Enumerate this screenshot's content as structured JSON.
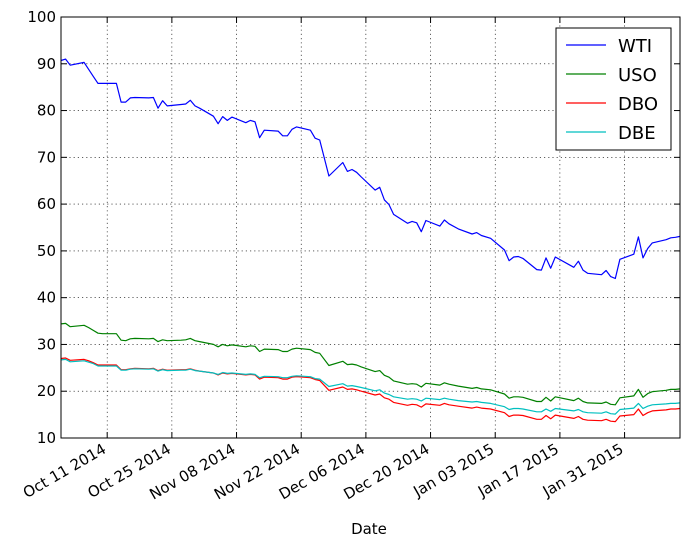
{
  "chart_data": {
    "type": "line",
    "xlabel": "Date",
    "ylabel": "",
    "ylim": [
      10,
      100
    ],
    "xlim": [
      "2014-10-01",
      "2015-02-12"
    ],
    "yticks": [
      10,
      20,
      30,
      40,
      50,
      60,
      70,
      80,
      90,
      100
    ],
    "xticks": [
      {
        "date": "2014-10-11",
        "label": "Oct 11 2014"
      },
      {
        "date": "2014-10-25",
        "label": "Oct 25 2014"
      },
      {
        "date": "2014-11-08",
        "label": "Nov 08 2014"
      },
      {
        "date": "2014-11-22",
        "label": "Nov 22 2014"
      },
      {
        "date": "2014-12-06",
        "label": "Dec 06 2014"
      },
      {
        "date": "2014-12-20",
        "label": "Dec 20 2014"
      },
      {
        "date": "2015-01-03",
        "label": "Jan 03 2015"
      },
      {
        "date": "2015-01-17",
        "label": "Jan 17 2015"
      },
      {
        "date": "2015-01-31",
        "label": "Jan 31 2015"
      }
    ],
    "grid": true,
    "legend_position": "top-right",
    "x": [
      "2014-10-01",
      "2014-10-02",
      "2014-10-03",
      "2014-10-06",
      "2014-10-07",
      "2014-10-08",
      "2014-10-09",
      "2014-10-10",
      "2014-10-13",
      "2014-10-14",
      "2014-10-15",
      "2014-10-16",
      "2014-10-17",
      "2014-10-20",
      "2014-10-21",
      "2014-10-22",
      "2014-10-23",
      "2014-10-24",
      "2014-10-27",
      "2014-10-28",
      "2014-10-29",
      "2014-10-30",
      "2014-10-31",
      "2014-11-03",
      "2014-11-04",
      "2014-11-05",
      "2014-11-06",
      "2014-11-07",
      "2014-11-10",
      "2014-11-11",
      "2014-11-12",
      "2014-11-13",
      "2014-11-14",
      "2014-11-17",
      "2014-11-18",
      "2014-11-19",
      "2014-11-20",
      "2014-11-21",
      "2014-11-24",
      "2014-11-25",
      "2014-11-26",
      "2014-11-28",
      "2014-12-01",
      "2014-12-02",
      "2014-12-03",
      "2014-12-04",
      "2014-12-05",
      "2014-12-08",
      "2014-12-09",
      "2014-12-10",
      "2014-12-11",
      "2014-12-12",
      "2014-12-15",
      "2014-12-16",
      "2014-12-17",
      "2014-12-18",
      "2014-12-19",
      "2014-12-22",
      "2014-12-23",
      "2014-12-24",
      "2014-12-26",
      "2014-12-29",
      "2014-12-30",
      "2014-12-31",
      "2015-01-02",
      "2015-01-05",
      "2015-01-06",
      "2015-01-07",
      "2015-01-08",
      "2015-01-09",
      "2015-01-12",
      "2015-01-13",
      "2015-01-14",
      "2015-01-15",
      "2015-01-16",
      "2015-01-20",
      "2015-01-21",
      "2015-01-22",
      "2015-01-23",
      "2015-01-26",
      "2015-01-27",
      "2015-01-28",
      "2015-01-29",
      "2015-01-30",
      "2015-02-02",
      "2015-02-03",
      "2015-02-04",
      "2015-02-05",
      "2015-02-06",
      "2015-02-09",
      "2015-02-10",
      "2015-02-11",
      "2015-02-12"
    ],
    "series": [
      {
        "name": "WTI",
        "color": "#0000ff",
        "values": [
          90.7,
          91.0,
          89.7,
          90.3,
          88.8,
          87.3,
          85.8,
          85.8,
          85.8,
          81.8,
          81.8,
          82.7,
          82.8,
          82.7,
          82.8,
          80.5,
          82.1,
          81.0,
          81.3,
          81.4,
          82.2,
          81.0,
          80.5,
          78.8,
          77.2,
          78.7,
          77.9,
          78.6,
          77.4,
          77.9,
          77.6,
          74.2,
          75.8,
          75.6,
          74.6,
          74.6,
          76.0,
          76.5,
          75.8,
          74.1,
          73.7,
          66.0,
          68.9,
          67.0,
          67.4,
          66.8,
          65.8,
          63.0,
          63.6,
          60.9,
          59.9,
          57.8,
          55.9,
          56.3,
          56.0,
          54.1,
          56.5,
          55.3,
          56.6,
          55.8,
          54.7,
          53.6,
          53.9,
          53.3,
          52.7,
          50.2,
          47.9,
          48.7,
          48.8,
          48.4,
          46.0,
          45.9,
          48.5,
          46.3,
          48.7,
          46.5,
          47.8,
          45.9,
          45.2,
          44.9,
          45.8,
          44.5,
          44.1,
          48.2,
          49.3,
          53.0,
          48.5,
          50.5,
          51.7,
          52.4,
          52.8,
          52.9,
          53.1
        ]
      },
      {
        "name": "USO",
        "color": "#008000",
        "values": [
          34.4,
          34.5,
          33.8,
          34.1,
          33.6,
          33.0,
          32.4,
          32.3,
          32.3,
          30.9,
          30.8,
          31.2,
          31.3,
          31.2,
          31.3,
          30.6,
          31.0,
          30.8,
          30.9,
          31.0,
          31.3,
          30.8,
          30.6,
          30.0,
          29.5,
          30.0,
          29.7,
          29.9,
          29.5,
          29.7,
          29.6,
          28.5,
          29.0,
          28.9,
          28.5,
          28.5,
          29.0,
          29.2,
          28.9,
          28.3,
          28.1,
          25.5,
          26.4,
          25.7,
          25.8,
          25.6,
          25.2,
          24.2,
          24.4,
          23.4,
          23.0,
          22.2,
          21.5,
          21.6,
          21.5,
          20.9,
          21.7,
          21.3,
          21.8,
          21.5,
          21.1,
          20.6,
          20.8,
          20.5,
          20.3,
          19.4,
          18.5,
          18.8,
          18.8,
          18.7,
          17.8,
          17.8,
          18.7,
          17.9,
          18.8,
          18.0,
          18.5,
          17.8,
          17.5,
          17.4,
          17.7,
          17.2,
          17.1,
          18.6,
          19.0,
          20.4,
          18.7,
          19.5,
          19.9,
          20.2,
          20.4,
          20.4,
          20.5
        ]
      },
      {
        "name": "DBO",
        "color": "#ff0000",
        "values": [
          27.0,
          27.1,
          26.6,
          26.8,
          26.5,
          26.1,
          25.6,
          25.6,
          25.6,
          24.6,
          24.6,
          24.8,
          24.9,
          24.8,
          24.9,
          24.4,
          24.7,
          24.5,
          24.6,
          24.6,
          24.8,
          24.5,
          24.3,
          23.9,
          23.5,
          23.9,
          23.7,
          23.8,
          23.5,
          23.6,
          23.5,
          22.6,
          23.0,
          22.9,
          22.6,
          22.6,
          23.0,
          23.1,
          22.9,
          22.5,
          22.3,
          20.2,
          20.9,
          20.4,
          20.5,
          20.3,
          20.0,
          19.2,
          19.4,
          18.6,
          18.3,
          17.6,
          17.0,
          17.2,
          17.1,
          16.6,
          17.3,
          17.0,
          17.4,
          17.1,
          16.8,
          16.4,
          16.6,
          16.4,
          16.2,
          15.4,
          14.6,
          14.9,
          14.9,
          14.8,
          14.0,
          14.0,
          14.8,
          14.1,
          14.9,
          14.2,
          14.6,
          14.0,
          13.8,
          13.7,
          14.0,
          13.6,
          13.5,
          14.7,
          15.0,
          16.2,
          14.8,
          15.4,
          15.8,
          16.0,
          16.2,
          16.2,
          16.3
        ]
      },
      {
        "name": "DBE",
        "color": "#00bfbf",
        "values": [
          26.7,
          26.8,
          26.3,
          26.5,
          26.2,
          25.9,
          25.4,
          25.4,
          25.4,
          24.5,
          24.5,
          24.7,
          24.8,
          24.7,
          24.8,
          24.3,
          24.6,
          24.4,
          24.5,
          24.5,
          24.7,
          24.4,
          24.3,
          23.9,
          23.6,
          24.0,
          23.8,
          23.9,
          23.6,
          23.7,
          23.6,
          22.9,
          23.2,
          23.1,
          22.9,
          22.9,
          23.2,
          23.3,
          23.1,
          22.7,
          22.6,
          21.0,
          21.6,
          21.1,
          21.2,
          21.0,
          20.8,
          20.1,
          20.3,
          19.6,
          19.3,
          18.8,
          18.3,
          18.4,
          18.3,
          17.9,
          18.5,
          18.2,
          18.5,
          18.3,
          18.0,
          17.7,
          17.8,
          17.6,
          17.4,
          16.7,
          16.1,
          16.3,
          16.3,
          16.2,
          15.6,
          15.6,
          16.2,
          15.7,
          16.3,
          15.8,
          16.1,
          15.6,
          15.4,
          15.3,
          15.6,
          15.2,
          15.1,
          16.1,
          16.4,
          17.4,
          16.3,
          16.8,
          17.1,
          17.3,
          17.4,
          17.4,
          17.5
        ]
      }
    ]
  }
}
